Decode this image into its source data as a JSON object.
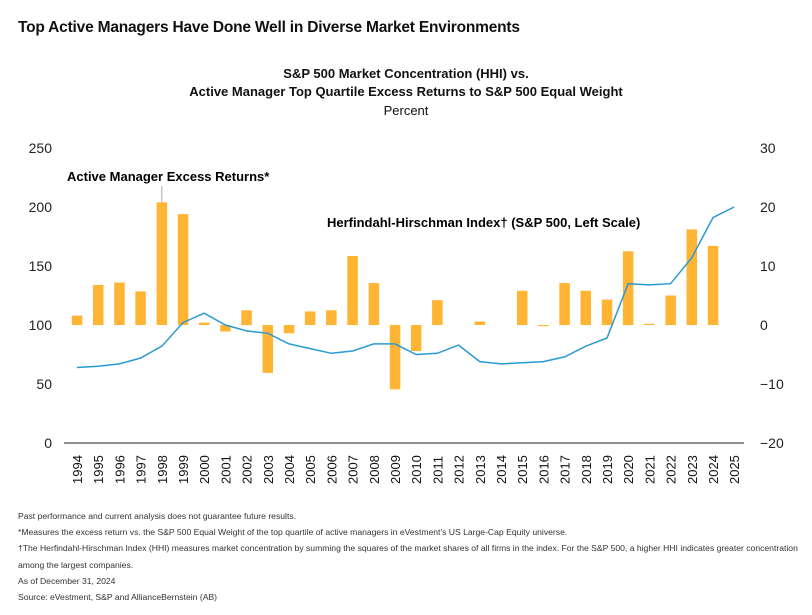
{
  "page_title": "Top Active Managers Have Done Well in Diverse Market Environments",
  "chart_title_line1": "S&P 500 Market Concentration (HHI) vs.",
  "chart_title_line2": "Active Manager Top Quartile Excess Returns to S&P 500 Equal Weight",
  "chart_unit": "Percent",
  "colors": {
    "bars": "#ffb433",
    "line": "#2a9ad4",
    "axis": "#222222"
  },
  "chart_data": {
    "type": "bar+line",
    "categories": [
      "1994",
      "1995",
      "1996",
      "1997",
      "1998",
      "1999",
      "2000",
      "2001",
      "2002",
      "2003",
      "2004",
      "2005",
      "2006",
      "2007",
      "2008",
      "2009",
      "2010",
      "2011",
      "2012",
      "2013",
      "2014",
      "2015",
      "2016",
      "2017",
      "2018",
      "2019",
      "2020",
      "2021",
      "2022",
      "2023",
      "2024",
      "2025"
    ],
    "series": [
      {
        "name": "Active Manager Excess Returns*",
        "type": "bar",
        "axis": "right",
        "values": [
          1.6,
          6.8,
          7.2,
          5.7,
          20.8,
          18.8,
          0.4,
          -1.1,
          2.5,
          -8.1,
          -1.4,
          2.3,
          2.5,
          11.7,
          7.1,
          -10.9,
          -4.4,
          4.2,
          null,
          0.6,
          null,
          5.8,
          -0.2,
          7.1,
          5.8,
          4.3,
          12.5,
          0.2,
          5.0,
          16.2,
          13.4,
          null
        ]
      },
      {
        "name": "Herfindahl-Hirschman Index† (S&P 500, Left Scale)",
        "type": "line",
        "axis": "left",
        "values": [
          64,
          65,
          67,
          72,
          82,
          102,
          110,
          100,
          95,
          93,
          84,
          80,
          76,
          78,
          84,
          84,
          75,
          76,
          83,
          69,
          67,
          68,
          69,
          73,
          82,
          89,
          135,
          134,
          135,
          157,
          191,
          200
        ]
      }
    ],
    "left_axis": {
      "ylim": [
        0,
        250
      ],
      "ticks": [
        "0",
        "50",
        "100",
        "150",
        "200",
        "250"
      ]
    },
    "right_axis": {
      "ylim": [
        -20,
        30
      ],
      "ticks": [
        "−20",
        "−10",
        "0",
        "10",
        "20",
        "30"
      ]
    },
    "annotations": {
      "bars_label": "Active Manager Excess Returns*",
      "line_label": "Herfindahl-Hirschman Index† (S&P 500, Left Scale)"
    },
    "grid": false
  },
  "notes": [
    "Past performance and current analysis does not guarantee future results.",
    "*Measures the excess return vs. the S&P 500 Equal Weight of the top quartile of active managers in eVestment's US Large-Cap Equity universe.",
    "†The Herfindahl-Hirschman Index (HHI) measures market concentration by summing the squares of the market shares of all firms in the index. For the S&P 500, a higher HHI indicates greater concentration among the largest companies.",
    "As of December 31, 2024",
    "Source: eVestment, S&P and AllianceBernstein (AB)"
  ]
}
